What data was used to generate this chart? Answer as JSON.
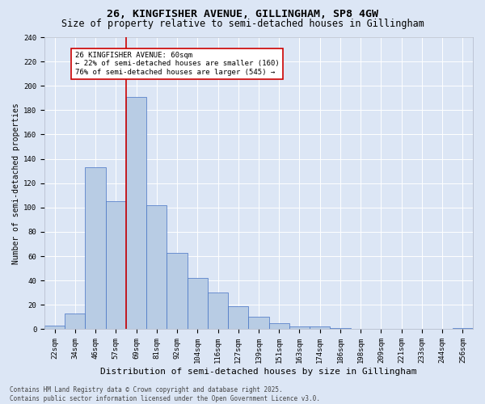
{
  "title": "26, KINGFISHER AVENUE, GILLINGHAM, SP8 4GW",
  "subtitle": "Size of property relative to semi-detached houses in Gillingham",
  "xlabel": "Distribution of semi-detached houses by size in Gillingham",
  "ylabel": "Number of semi-detached properties",
  "categories": [
    "22sqm",
    "34sqm",
    "46sqm",
    "57sqm",
    "69sqm",
    "81sqm",
    "92sqm",
    "104sqm",
    "116sqm",
    "127sqm",
    "139sqm",
    "151sqm",
    "163sqm",
    "174sqm",
    "186sqm",
    "198sqm",
    "209sqm",
    "221sqm",
    "233sqm",
    "244sqm",
    "256sqm"
  ],
  "values": [
    3,
    13,
    133,
    105,
    191,
    102,
    63,
    42,
    30,
    19,
    10,
    5,
    2,
    2,
    1,
    0,
    0,
    0,
    0,
    0,
    1
  ],
  "bar_color": "#b8cce4",
  "bar_edge_color": "#4472c4",
  "background_color": "#dce6f5",
  "grid_color": "#ffffff",
  "vline_x_idx": 3,
  "vline_color": "#cc0000",
  "annotation_title": "26 KINGFISHER AVENUE: 60sqm",
  "annotation_line1": "← 22% of semi-detached houses are smaller (160)",
  "annotation_line2": "76% of semi-detached houses are larger (545) →",
  "annotation_box_color": "#ffffff",
  "annotation_box_edge": "#cc0000",
  "footer_line1": "Contains HM Land Registry data © Crown copyright and database right 2025.",
  "footer_line2": "Contains public sector information licensed under the Open Government Licence v3.0.",
  "ylim": [
    0,
    240
  ],
  "yticks": [
    0,
    20,
    40,
    60,
    80,
    100,
    120,
    140,
    160,
    180,
    200,
    220,
    240
  ],
  "title_fontsize": 9.5,
  "subtitle_fontsize": 8.5,
  "xlabel_fontsize": 8,
  "ylabel_fontsize": 7,
  "tick_fontsize": 6.5,
  "annot_fontsize": 6.5,
  "footer_fontsize": 5.5
}
